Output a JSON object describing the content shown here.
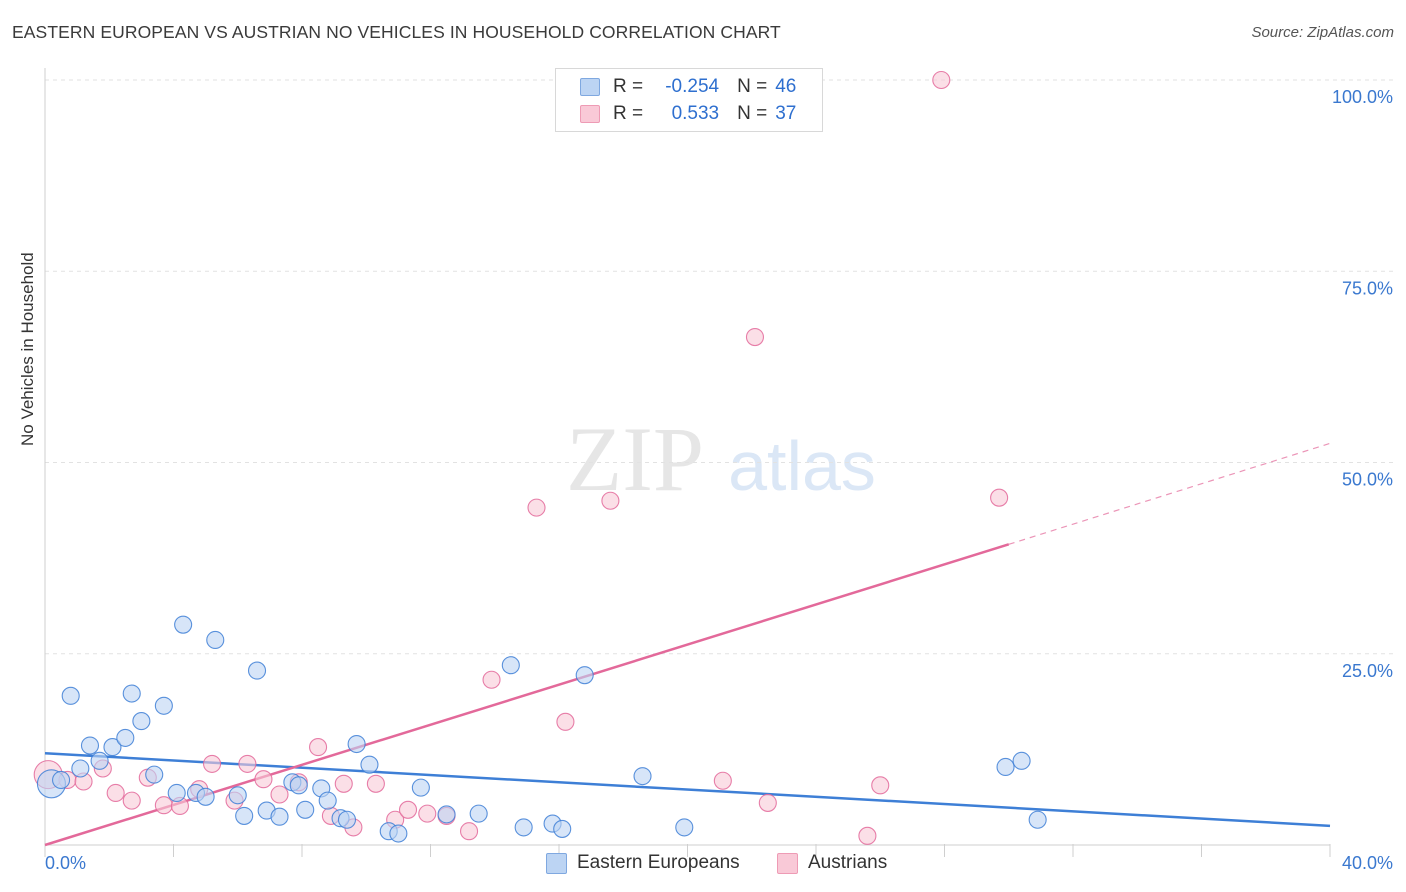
{
  "header": {
    "title": "EASTERN EUROPEAN VS AUSTRIAN NO VEHICLES IN HOUSEHOLD CORRELATION CHART",
    "source": "Source: ZipAtlas.com"
  },
  "legend": {
    "r_label": "R =",
    "n_label": "N =",
    "series": [
      {
        "r": "-0.254",
        "n": "46"
      },
      {
        "r": "0.533",
        "n": "37"
      }
    ]
  },
  "bottom_legend": [
    "Eastern Europeans",
    "Austrians"
  ],
  "watermark": {
    "zip": "ZIP",
    "atlas": "atlas"
  },
  "colors": {
    "blue": "#3e7fd6",
    "blue_fill": "#bcd4f3",
    "pink": "#e3699a",
    "pink_fill": "#f9c9d7",
    "tick_text": "#3a78cf",
    "grid": "#e2e2e2"
  },
  "chart_data": {
    "type": "scatter",
    "title": "EASTERN EUROPEAN VS AUSTRIAN NO VEHICLES IN HOUSEHOLD CORRELATION CHART",
    "xlabel": "",
    "ylabel": "No Vehicles in Household",
    "xlim": [
      0,
      40
    ],
    "ylim": [
      0,
      100
    ],
    "x_tick_labels": [
      {
        "value": 0,
        "label": "0.0%"
      },
      {
        "value": 40,
        "label": "40.0%"
      }
    ],
    "y_tick_labels": [
      {
        "value": 25,
        "label": "25.0%"
      },
      {
        "value": 50,
        "label": "50.0%"
      },
      {
        "value": 75,
        "label": "75.0%"
      },
      {
        "value": 100,
        "label": "100.0%"
      }
    ],
    "series": [
      {
        "name": "Eastern Europeans",
        "r": -0.254,
        "n": 46,
        "trend": {
          "x0": 0,
          "y0": 12.0,
          "x1": 40,
          "y1": 2.5
        },
        "points": [
          {
            "x": 0.2,
            "y": 8.0,
            "big": true
          },
          {
            "x": 0.5,
            "y": 8.5
          },
          {
            "x": 0.8,
            "y": 19.5
          },
          {
            "x": 1.1,
            "y": 10.0
          },
          {
            "x": 1.4,
            "y": 13.0
          },
          {
            "x": 1.7,
            "y": 11.0
          },
          {
            "x": 2.1,
            "y": 12.8
          },
          {
            "x": 2.5,
            "y": 14.0
          },
          {
            "x": 2.7,
            "y": 19.8
          },
          {
            "x": 3.0,
            "y": 16.2
          },
          {
            "x": 3.4,
            "y": 9.2
          },
          {
            "x": 3.7,
            "y": 18.2
          },
          {
            "x": 4.1,
            "y": 6.8
          },
          {
            "x": 4.3,
            "y": 28.8
          },
          {
            "x": 4.7,
            "y": 6.8
          },
          {
            "x": 5.0,
            "y": 6.3
          },
          {
            "x": 5.3,
            "y": 26.8
          },
          {
            "x": 6.0,
            "y": 6.5
          },
          {
            "x": 6.2,
            "y": 3.8
          },
          {
            "x": 6.6,
            "y": 22.8
          },
          {
            "x": 6.9,
            "y": 4.5
          },
          {
            "x": 7.3,
            "y": 3.7
          },
          {
            "x": 7.7,
            "y": 8.2
          },
          {
            "x": 7.9,
            "y": 7.8
          },
          {
            "x": 8.1,
            "y": 4.6
          },
          {
            "x": 8.6,
            "y": 7.4
          },
          {
            "x": 8.8,
            "y": 5.8
          },
          {
            "x": 9.2,
            "y": 3.5
          },
          {
            "x": 9.4,
            "y": 3.3
          },
          {
            "x": 9.7,
            "y": 13.2
          },
          {
            "x": 10.1,
            "y": 10.5
          },
          {
            "x": 10.7,
            "y": 1.8
          },
          {
            "x": 11.0,
            "y": 1.5
          },
          {
            "x": 11.7,
            "y": 7.5
          },
          {
            "x": 12.5,
            "y": 4.0
          },
          {
            "x": 13.5,
            "y": 4.1
          },
          {
            "x": 14.5,
            "y": 23.5
          },
          {
            "x": 14.9,
            "y": 2.3
          },
          {
            "x": 15.8,
            "y": 2.8
          },
          {
            "x": 16.1,
            "y": 2.1
          },
          {
            "x": 16.8,
            "y": 22.2
          },
          {
            "x": 18.6,
            "y": 9.0
          },
          {
            "x": 19.9,
            "y": 2.3
          },
          {
            "x": 29.9,
            "y": 10.2
          },
          {
            "x": 30.4,
            "y": 11.0
          },
          {
            "x": 30.9,
            "y": 3.3
          }
        ]
      },
      {
        "name": "Austrians",
        "r": 0.533,
        "n": 37,
        "trend": {
          "x0": 0,
          "y0": 0.0,
          "x1": 30.0,
          "y1": 39.3
        },
        "trend_extended": {
          "x0": 30.0,
          "y0": 39.3,
          "x1": 40,
          "y1": 52.5
        },
        "points": [
          {
            "x": 0.1,
            "y": 9.2,
            "big": true
          },
          {
            "x": 0.7,
            "y": 8.5
          },
          {
            "x": 1.2,
            "y": 8.3
          },
          {
            "x": 1.8,
            "y": 10.0
          },
          {
            "x": 2.2,
            "y": 6.8
          },
          {
            "x": 2.7,
            "y": 5.8
          },
          {
            "x": 3.2,
            "y": 8.8
          },
          {
            "x": 3.7,
            "y": 5.2
          },
          {
            "x": 4.2,
            "y": 5.1
          },
          {
            "x": 4.8,
            "y": 7.3
          },
          {
            "x": 5.2,
            "y": 10.6
          },
          {
            "x": 5.9,
            "y": 5.8
          },
          {
            "x": 6.3,
            "y": 10.6
          },
          {
            "x": 6.8,
            "y": 8.6
          },
          {
            "x": 7.3,
            "y": 6.6
          },
          {
            "x": 7.9,
            "y": 8.2
          },
          {
            "x": 8.5,
            "y": 12.8
          },
          {
            "x": 8.9,
            "y": 3.8
          },
          {
            "x": 9.3,
            "y": 8.0
          },
          {
            "x": 9.6,
            "y": 2.3
          },
          {
            "x": 10.3,
            "y": 8.0
          },
          {
            "x": 10.9,
            "y": 3.3
          },
          {
            "x": 11.3,
            "y": 4.6
          },
          {
            "x": 11.9,
            "y": 4.1
          },
          {
            "x": 12.5,
            "y": 3.8
          },
          {
            "x": 13.2,
            "y": 1.8
          },
          {
            "x": 13.9,
            "y": 21.6
          },
          {
            "x": 15.3,
            "y": 44.1
          },
          {
            "x": 16.2,
            "y": 16.1
          },
          {
            "x": 17.6,
            "y": 45.0
          },
          {
            "x": 21.1,
            "y": 8.4
          },
          {
            "x": 22.1,
            "y": 66.4
          },
          {
            "x": 22.5,
            "y": 5.5
          },
          {
            "x": 25.6,
            "y": 1.2
          },
          {
            "x": 26.0,
            "y": 7.8
          },
          {
            "x": 27.9,
            "y": 100.0
          },
          {
            "x": 29.7,
            "y": 45.4
          }
        ]
      }
    ]
  }
}
